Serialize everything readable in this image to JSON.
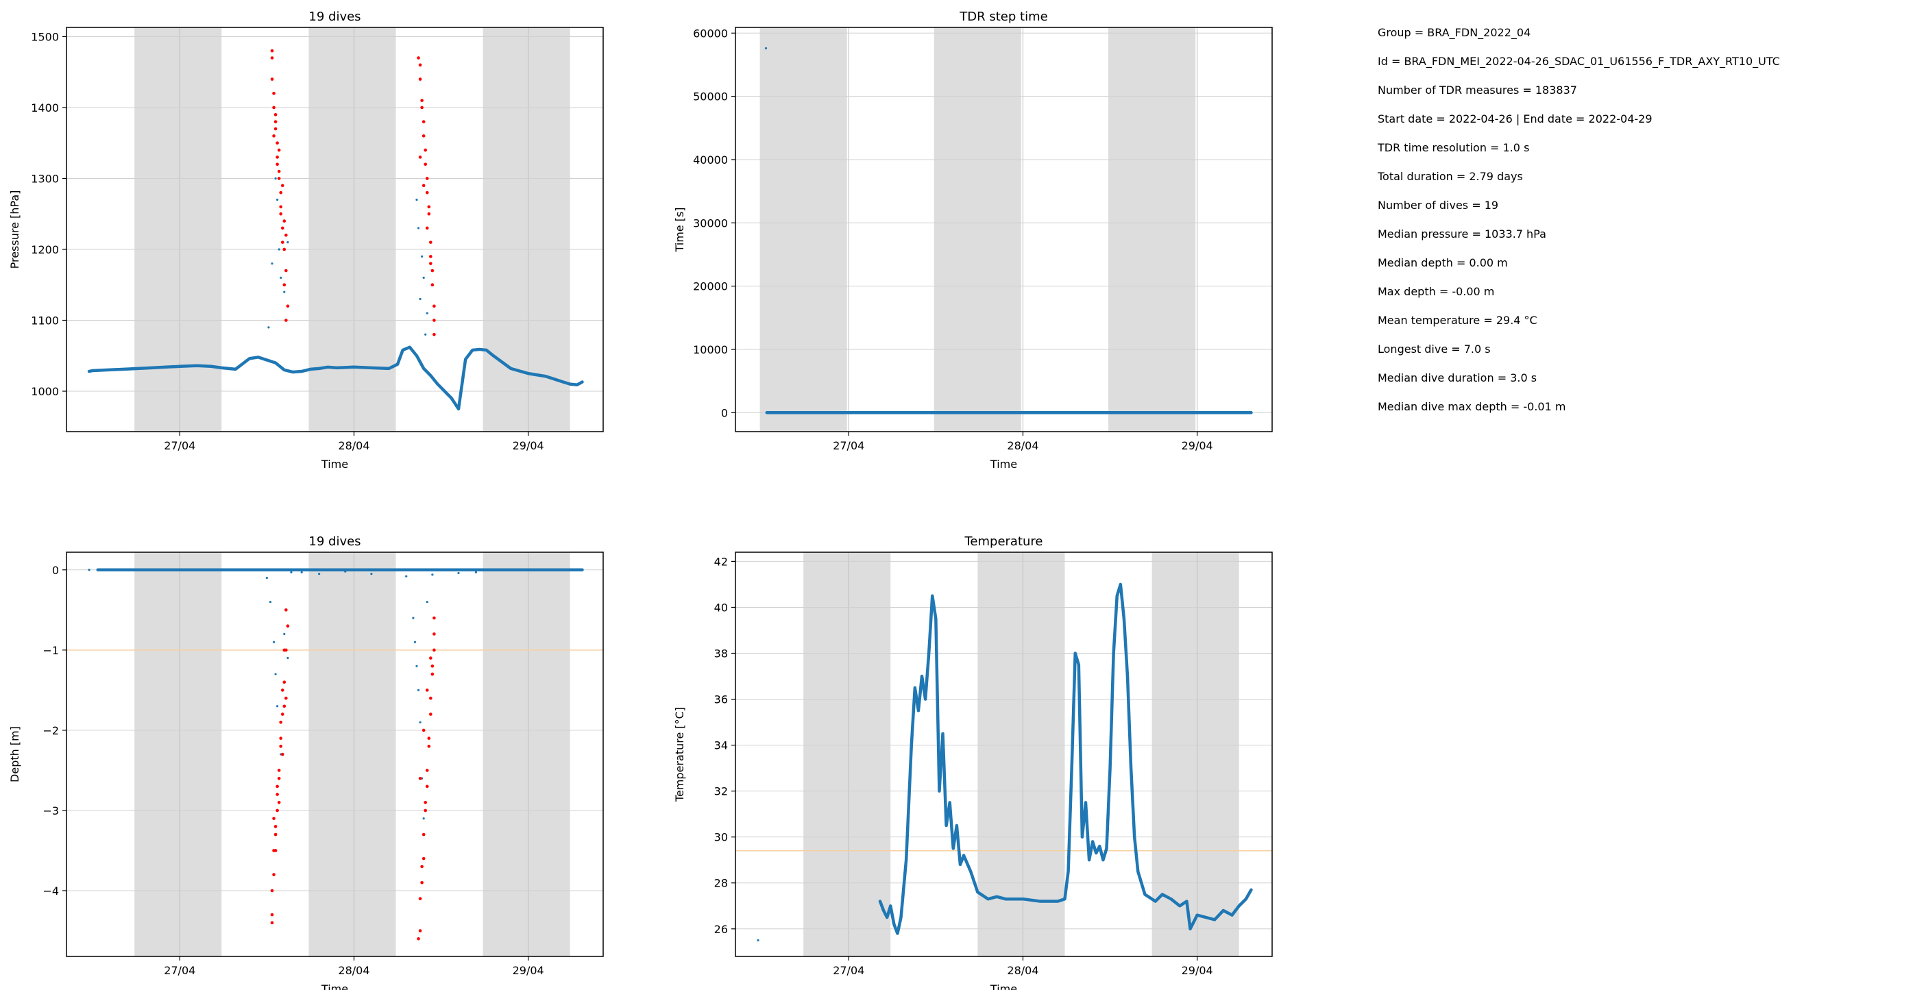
{
  "info": {
    "lines": [
      "Group = BRA_FDN_2022_04",
      "Id = BRA_FDN_MEI_2022-04-26_SDAC_01_U61556_F_TDR_AXY_RT10_UTC",
      "Number of TDR measures = 183837",
      "Start date = 2022-04-26 | End date = 2022-04-29",
      "TDR time resolution = 1.0 s",
      "Total duration = 2.79 days",
      "Number of dives = 19",
      "Median pressure = 1033.7 hPa",
      "Median depth = 0.00 m",
      "Max depth = -0.00 m",
      "Mean temperature = 29.4 °C",
      "Longest dive = 7.0 s",
      "Median dive duration = 3.0 s",
      "Median dive max depth = -0.01 m"
    ]
  },
  "colors": {
    "series": "#1f77b4",
    "dives": "#ff0000",
    "night_band": "#dddddd",
    "reference_line": "#f5d0a0",
    "grid": "#d0d0d0"
  },
  "chart_data": [
    {
      "type": "scatter",
      "title": "19 dives",
      "xlabel": "Time",
      "ylabel": "Pressure [hPa]",
      "x_unit": "days from 2022-04-26 00:00",
      "xlim": [
        0.35,
        3.43
      ],
      "ylim": [
        943,
        1513
      ],
      "xticks": [
        1,
        2,
        3
      ],
      "xticklabels": [
        "27/04",
        "28/04",
        "29/04"
      ],
      "yticks": [
        1000,
        1100,
        1200,
        1300,
        1400,
        1500
      ],
      "yticklabels": [
        "1000",
        "1100",
        "1200",
        "1300",
        "1400",
        "1500"
      ],
      "night_bands": [
        [
          0.74,
          1.24
        ],
        [
          1.74,
          2.24
        ],
        [
          2.74,
          3.24
        ]
      ],
      "series": [
        {
          "kind": "line",
          "x": [
            0.48,
            0.5,
            0.58,
            0.68,
            0.76,
            0.84,
            0.92,
            1.0,
            1.1,
            1.18,
            1.24,
            1.32,
            1.4,
            1.45,
            1.5,
            1.55,
            1.6,
            1.65,
            1.7,
            1.75,
            1.8,
            1.85,
            1.9,
            2.0,
            2.1,
            2.2,
            2.25,
            2.28,
            2.32,
            2.36,
            2.4,
            2.44,
            2.48,
            2.52,
            2.56,
            2.6,
            2.64,
            2.68,
            2.72,
            2.76,
            2.8,
            2.9,
            3.0,
            3.1,
            3.2,
            3.24,
            3.28,
            3.31
          ],
          "y": [
            1028,
            1029,
            1030,
            1031,
            1032,
            1033,
            1034,
            1035,
            1036,
            1035,
            1033,
            1031,
            1046,
            1048,
            1044,
            1040,
            1030,
            1027,
            1028,
            1031,
            1032,
            1034,
            1033,
            1034,
            1033,
            1032,
            1038,
            1058,
            1062,
            1050,
            1032,
            1022,
            1010,
            1000,
            990,
            975,
            1045,
            1058,
            1059,
            1058,
            1050,
            1032,
            1025,
            1021,
            1013,
            1010,
            1009,
            1013
          ]
        },
        {
          "kind": "points",
          "x": [
            1.51,
            1.53,
            1.55,
            1.56,
            1.57,
            1.58,
            1.59,
            1.6,
            1.61,
            1.62,
            2.36,
            2.37,
            2.38,
            2.39,
            2.4,
            2.41,
            2.42
          ],
          "y": [
            1090,
            1180,
            1300,
            1270,
            1200,
            1160,
            1230,
            1140,
            1100,
            1210,
            1270,
            1230,
            1130,
            1190,
            1160,
            1080,
            1110
          ]
        }
      ],
      "dive_points": {
        "x": [
          1.53,
          1.54,
          1.55,
          1.56,
          1.57,
          1.58,
          1.59,
          1.6,
          1.61,
          1.62,
          1.53,
          1.54,
          1.55,
          1.56,
          1.57,
          1.58,
          1.59,
          1.6,
          1.61,
          1.53,
          1.55,
          1.57,
          1.59,
          1.61,
          1.54,
          1.56,
          1.58,
          1.6,
          2.37,
          2.38,
          2.39,
          2.4,
          2.41,
          2.42,
          2.43,
          2.44,
          2.45,
          2.46,
          2.38,
          2.39,
          2.4,
          2.41,
          2.42,
          2.43,
          2.44,
          2.45,
          2.46,
          2.38,
          2.4,
          2.42,
          2.44,
          2.46
        ],
        "y": [
          1480,
          1420,
          1390,
          1350,
          1310,
          1260,
          1230,
          1200,
          1170,
          1120,
          1470,
          1400,
          1370,
          1330,
          1300,
          1250,
          1210,
          1150,
          1100,
          1440,
          1380,
          1340,
          1290,
          1220,
          1360,
          1320,
          1280,
          1240,
          1470,
          1440,
          1400,
          1360,
          1320,
          1280,
          1250,
          1190,
          1150,
          1100,
          1460,
          1410,
          1380,
          1340,
          1300,
          1260,
          1210,
          1170,
          1120,
          1330,
          1290,
          1230,
          1180,
          1080
        ]
      }
    },
    {
      "type": "scatter",
      "title": "TDR step time",
      "xlabel": "Time",
      "ylabel": "Time [s]",
      "x_unit": "days from 2022-04-26 00:00",
      "xlim": [
        0.35,
        3.43
      ],
      "ylim": [
        -3000,
        60900
      ],
      "xticks": [
        1,
        2,
        3
      ],
      "xticklabels": [
        "27/04",
        "28/04",
        "29/04"
      ],
      "yticks": [
        0,
        10000,
        20000,
        30000,
        40000,
        50000,
        60000
      ],
      "yticklabels": [
        "0",
        "10000",
        "20000",
        "30000",
        "40000",
        "50000",
        "60000"
      ],
      "night_bands": [
        [
          0.49,
          0.99
        ],
        [
          1.49,
          1.99
        ],
        [
          2.49,
          2.99
        ]
      ],
      "series": [
        {
          "kind": "line",
          "x": [
            0.53,
            3.31
          ],
          "y": [
            0,
            0
          ]
        },
        {
          "kind": "points",
          "x": [
            0.525
          ],
          "y": [
            57600
          ]
        }
      ]
    },
    {
      "type": "scatter",
      "title": "19 dives",
      "xlabel": "Time",
      "ylabel": "Depth [m]",
      "x_unit": "days from 2022-04-26 00:00",
      "xlim": [
        0.35,
        3.43
      ],
      "ylim": [
        -4.82,
        0.22
      ],
      "xticks": [
        1,
        2,
        3
      ],
      "xticklabels": [
        "27/04",
        "28/04",
        "29/04"
      ],
      "yticks": [
        0,
        -1,
        -2,
        -3,
        -4
      ],
      "yticklabels": [
        "0",
        "−1",
        "−2",
        "−3",
        "−4"
      ],
      "night_bands": [
        [
          0.74,
          1.24
        ],
        [
          1.74,
          2.24
        ],
        [
          2.74,
          3.24
        ]
      ],
      "reference_line": -1,
      "series": [
        {
          "kind": "line",
          "x": [
            0.53,
            3.31
          ],
          "y": [
            0,
            0
          ]
        },
        {
          "kind": "points",
          "x": [
            0.48,
            1.5,
            1.52,
            1.54,
            1.55,
            1.56,
            1.58,
            1.6,
            1.62,
            1.64,
            1.7,
            1.8,
            1.95,
            2.1,
            2.3,
            2.34,
            2.35,
            2.36,
            2.37,
            2.38,
            2.39,
            2.4,
            2.42,
            2.45,
            2.6,
            2.7
          ],
          "y": [
            0,
            -0.1,
            -0.4,
            -0.9,
            -1.3,
            -1.7,
            -2.3,
            -0.8,
            -1.1,
            -0.03,
            -0.03,
            -0.05,
            -0.02,
            -0.05,
            -0.08,
            -0.6,
            -0.9,
            -1.2,
            -1.5,
            -1.9,
            -2.6,
            -3.1,
            -0.4,
            -0.06,
            -0.04,
            -0.03
          ]
        }
      ],
      "dive_points": {
        "x": [
          1.53,
          1.54,
          1.55,
          1.56,
          1.57,
          1.58,
          1.59,
          1.6,
          1.61,
          1.62,
          1.53,
          1.54,
          1.55,
          1.56,
          1.57,
          1.58,
          1.59,
          1.6,
          1.61,
          1.53,
          1.55,
          1.57,
          1.59,
          1.61,
          1.54,
          1.56,
          1.58,
          1.6,
          2.37,
          2.38,
          2.39,
          2.4,
          2.41,
          2.42,
          2.43,
          2.44,
          2.45,
          2.46,
          2.38,
          2.39,
          2.4,
          2.41,
          2.42,
          2.43,
          2.44,
          2.45,
          2.46,
          2.38,
          2.4,
          2.42,
          2.44,
          2.46
        ],
        "y": [
          -4.4,
          -3.8,
          -3.5,
          -3.0,
          -2.6,
          -2.1,
          -1.8,
          -1.4,
          -1.0,
          -0.7,
          -4.3,
          -3.5,
          -3.2,
          -2.8,
          -2.5,
          -1.9,
          -1.5,
          -1.0,
          -0.5,
          -4.0,
          -3.3,
          -2.9,
          -2.3,
          -1.6,
          -3.1,
          -2.7,
          -2.2,
          -1.7,
          -4.6,
          -4.1,
          -3.7,
          -3.3,
          -2.9,
          -2.5,
          -2.1,
          -1.6,
          -1.2,
          -0.8,
          -4.5,
          -3.9,
          -3.6,
          -3.0,
          -2.7,
          -2.2,
          -1.8,
          -1.3,
          -1.0,
          -2.6,
          -2.0,
          -1.5,
          -1.1,
          -0.6
        ]
      }
    },
    {
      "type": "scatter",
      "title": "Temperature",
      "xlabel": "Time",
      "ylabel": "Temperature [°C]",
      "x_unit": "days from 2022-04-26 00:00",
      "xlim": [
        0.35,
        3.43
      ],
      "ylim": [
        24.8,
        42.4
      ],
      "xticks": [
        1,
        2,
        3
      ],
      "xticklabels": [
        "27/04",
        "28/04",
        "29/04"
      ],
      "yticks": [
        26,
        28,
        30,
        32,
        34,
        36,
        38,
        40,
        42
      ],
      "yticklabels": [
        "26",
        "28",
        "30",
        "32",
        "34",
        "36",
        "38",
        "40",
        "42"
      ],
      "night_bands": [
        [
          0.74,
          1.24
        ],
        [
          1.74,
          2.24
        ],
        [
          2.74,
          3.24
        ]
      ],
      "reference_line": 29.4,
      "series": [
        {
          "kind": "line",
          "x": [
            1.18,
            1.2,
            1.22,
            1.24,
            1.26,
            1.28,
            1.3,
            1.33,
            1.36,
            1.38,
            1.4,
            1.42,
            1.44,
            1.46,
            1.48,
            1.5,
            1.52,
            1.54,
            1.56,
            1.58,
            1.6,
            1.62,
            1.64,
            1.66,
            1.7,
            1.74,
            1.78,
            1.8,
            1.85,
            1.9,
            2.0,
            2.1,
            2.2,
            2.24,
            2.26,
            2.28,
            2.3,
            2.32,
            2.34,
            2.36,
            2.38,
            2.4,
            2.42,
            2.44,
            2.46,
            2.48,
            2.5,
            2.52,
            2.54,
            2.56,
            2.58,
            2.6,
            2.62,
            2.64,
            2.66,
            2.7,
            2.76,
            2.8,
            2.85,
            2.9,
            2.94,
            2.96,
            3.0,
            3.05,
            3.1,
            3.15,
            3.2,
            3.24,
            3.28,
            3.31
          ],
          "y": [
            27.2,
            26.8,
            26.5,
            27.0,
            26.2,
            25.8,
            26.5,
            29.0,
            34.0,
            36.5,
            35.5,
            37.0,
            36.0,
            38.0,
            40.5,
            39.5,
            32.0,
            34.5,
            30.5,
            31.5,
            29.5,
            30.5,
            28.8,
            29.2,
            28.5,
            27.6,
            27.4,
            27.3,
            27.4,
            27.3,
            27.3,
            27.2,
            27.2,
            27.3,
            28.5,
            33.0,
            38.0,
            37.5,
            30.0,
            31.5,
            29.0,
            29.8,
            29.3,
            29.6,
            29.0,
            29.5,
            33.0,
            38.0,
            40.5,
            41.0,
            39.5,
            37.0,
            33.0,
            30.0,
            28.5,
            27.5,
            27.2,
            27.5,
            27.3,
            27.0,
            27.2,
            26.0,
            26.6,
            26.5,
            26.4,
            26.8,
            26.6,
            27.0,
            27.3,
            27.7
          ]
        },
        {
          "kind": "points",
          "x": [
            0.48
          ],
          "y": [
            25.5
          ]
        }
      ]
    }
  ]
}
